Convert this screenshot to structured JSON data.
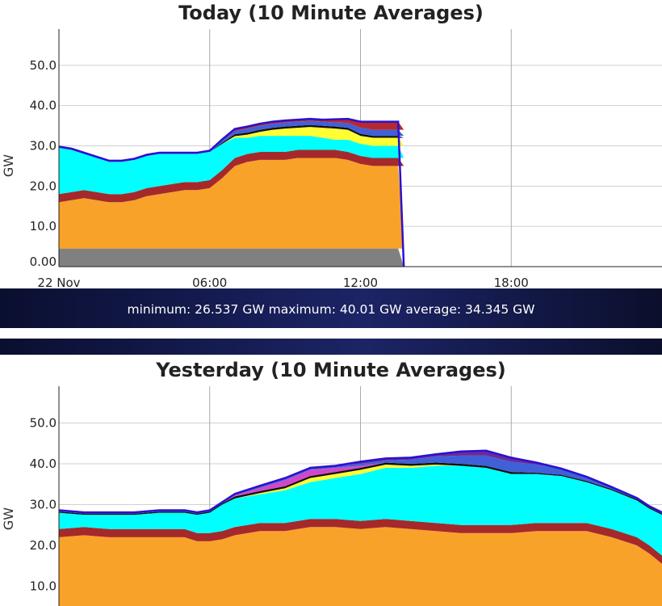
{
  "colors": {
    "grid": "#d0d0d0",
    "vgrid": "#aaaaaa",
    "axis": "#222222",
    "grey": "#808080",
    "orange": "#f8a22a",
    "darkred": "#a5292a",
    "cyan": "#00ffff",
    "yellow": "#ffff33",
    "black": "#111111",
    "magenta": "#d048c8",
    "blue": "#4060d8",
    "darkblue": "#2010b0",
    "red": "#b52a30",
    "purple": "#6a2a9a",
    "outline": "#2a10d0"
  },
  "stats": {
    "text": "minimum: 26.537 GW maximum: 40.01 GW average: 34.345 GW"
  },
  "chart_data": [
    {
      "type": "area",
      "title": "Today (10 Minute Averages)",
      "xlabel": "",
      "ylabel": "GW",
      "xlim": [
        0,
        24
      ],
      "ylim": [
        0,
        59
      ],
      "grid": true,
      "yticks": [
        0,
        10,
        20,
        30,
        40,
        50
      ],
      "ytick_labels": [
        "0.00",
        "10.0",
        "20.0",
        "30.0",
        "40.0",
        "50.0"
      ],
      "xticks": [
        0,
        6,
        12,
        18
      ],
      "xtick_labels": [
        "22 Nov",
        "06:00",
        "12:00",
        "18:00"
      ],
      "x": [
        0.0,
        0.5,
        1.0,
        1.5,
        2.0,
        2.5,
        3.0,
        3.5,
        4.0,
        4.5,
        5.0,
        5.5,
        6.0,
        6.5,
        7.0,
        7.5,
        8.0,
        8.5,
        9.0,
        9.5,
        10.0,
        10.5,
        11.0,
        11.5,
        12.0,
        12.5,
        13.0,
        13.5
      ],
      "stack": [
        {
          "color_key": "grey",
          "values": [
            4.5,
            4.5,
            4.5,
            4.5,
            4.5,
            4.5,
            4.5,
            4.5,
            4.5,
            4.5,
            4.5,
            4.5,
            4.5,
            4.5,
            4.5,
            4.5,
            4.5,
            4.5,
            4.5,
            4.5,
            4.5,
            4.5,
            4.5,
            4.5,
            4.5,
            4.5,
            4.5,
            4.5
          ]
        },
        {
          "color_key": "orange",
          "values": [
            11.5,
            12.0,
            12.5,
            12.0,
            11.5,
            11.5,
            12.0,
            13.0,
            13.5,
            14.0,
            14.5,
            14.5,
            15.0,
            17.5,
            20.5,
            21.5,
            22.0,
            22.0,
            22.0,
            22.5,
            22.5,
            22.5,
            22.5,
            22.0,
            21.0,
            20.5,
            20.5,
            20.5
          ]
        },
        {
          "color_key": "darkred",
          "values": [
            2.0,
            2.0,
            2.0,
            2.0,
            2.0,
            2.0,
            2.0,
            2.0,
            2.0,
            2.0,
            2.0,
            2.0,
            2.0,
            2.0,
            2.0,
            2.0,
            2.0,
            2.0,
            2.0,
            2.0,
            2.0,
            2.0,
            2.0,
            2.0,
            2.0,
            2.0,
            2.0,
            2.0
          ]
        },
        {
          "color_key": "cyan",
          "values": [
            11.5,
            10.5,
            9.0,
            8.5,
            8.0,
            8.0,
            8.0,
            8.0,
            8.0,
            7.5,
            7.0,
            7.0,
            7.0,
            6.5,
            5.0,
            4.0,
            4.0,
            4.0,
            4.0,
            3.5,
            3.5,
            3.0,
            2.5,
            3.0,
            3.0,
            3.0,
            3.0,
            3.0
          ]
        },
        {
          "color_key": "yellow",
          "values": [
            0,
            0,
            0,
            0,
            0,
            0,
            0,
            0,
            0,
            0,
            0,
            0,
            0,
            0,
            0.4,
            0.8,
            1.0,
            1.5,
            1.8,
            2.0,
            2.2,
            2.5,
            2.8,
            2.5,
            2.0,
            2.0,
            2.0,
            2.0
          ]
        },
        {
          "color_key": "black",
          "values": [
            0,
            0,
            0,
            0,
            0,
            0,
            0,
            0,
            0,
            0,
            0,
            0,
            0,
            0.3,
            0.5,
            0.5,
            0.5,
            0.5,
            0.5,
            0.5,
            0.5,
            0.5,
            0.5,
            0.5,
            0.5,
            0.5,
            0.5,
            0.5
          ]
        },
        {
          "color_key": "blue",
          "values": [
            0.3,
            0.3,
            0.3,
            0.3,
            0.3,
            0.3,
            0.3,
            0.3,
            0.3,
            0.3,
            0.3,
            0.3,
            0.3,
            0.5,
            0.8,
            1.0,
            1.0,
            1.0,
            1.0,
            1.0,
            1.0,
            1.0,
            1.0,
            1.2,
            1.5,
            1.5,
            1.5,
            1.5
          ]
        },
        {
          "color_key": "red",
          "values": [
            0,
            0,
            0,
            0,
            0,
            0,
            0,
            0,
            0,
            0,
            0,
            0,
            0,
            0.3,
            0.5,
            0.5,
            0.5,
            0.5,
            0.5,
            0.5,
            0.5,
            0.5,
            0.8,
            1.0,
            1.5,
            2.0,
            2.0,
            2.0
          ]
        }
      ],
      "outline_color_key": "outline"
    },
    {
      "type": "area",
      "title": "Yesterday (10 Minute Averages)",
      "xlabel": "",
      "ylabel": "GW",
      "xlim": [
        0,
        24
      ],
      "ylim": [
        0,
        59
      ],
      "grid": true,
      "yticks": [
        10,
        20,
        30,
        40,
        50
      ],
      "ytick_labels": [
        "10.0",
        "20.0",
        "30.0",
        "40.0",
        "50.0"
      ],
      "xticks": [
        6,
        12,
        18
      ],
      "xtick_labels": [],
      "x": [
        0,
        1,
        2,
        3,
        4,
        5,
        5.5,
        6,
        6.5,
        7,
        8,
        9,
        10,
        11,
        12,
        13,
        14,
        15,
        16,
        17,
        18,
        19,
        20,
        21,
        22,
        23,
        23.5,
        24
      ],
      "stack": [
        {
          "color_key": "orange",
          "values": [
            22.0,
            22.5,
            22.0,
            22.0,
            22.0,
            22.0,
            21.0,
            21.0,
            21.5,
            22.5,
            23.5,
            23.5,
            24.5,
            24.5,
            24.0,
            24.5,
            24.0,
            23.5,
            23.0,
            23.0,
            23.0,
            23.5,
            23.5,
            23.5,
            22.0,
            20.0,
            18.0,
            15.5
          ]
        },
        {
          "color_key": "darkred",
          "values": [
            2.0,
            2.0,
            2.0,
            2.0,
            2.0,
            2.0,
            2.0,
            2.0,
            2.0,
            2.0,
            2.0,
            2.0,
            2.0,
            2.0,
            2.0,
            2.0,
            2.0,
            2.0,
            2.0,
            2.0,
            2.0,
            2.0,
            2.0,
            2.0,
            2.0,
            2.0,
            2.0,
            2.0
          ]
        },
        {
          "color_key": "cyan",
          "values": [
            4.0,
            3.0,
            3.5,
            3.5,
            4.0,
            4.0,
            4.5,
            5.0,
            6.5,
            7.0,
            7.0,
            8.0,
            9.0,
            10.0,
            11.5,
            12.5,
            13.0,
            14.0,
            14.5,
            14.0,
            12.5,
            12.0,
            11.5,
            10.0,
            9.5,
            9.0,
            9.0,
            10.0
          ]
        },
        {
          "color_key": "yellow",
          "values": [
            0,
            0,
            0,
            0,
            0,
            0,
            0,
            0,
            0,
            0,
            0.3,
            0.5,
            1.0,
            1.0,
            1.0,
            0.8,
            0.5,
            0.3,
            0,
            0,
            0,
            0,
            0,
            0,
            0,
            0,
            0,
            0
          ]
        },
        {
          "color_key": "black",
          "values": [
            0.3,
            0.3,
            0.3,
            0.3,
            0.3,
            0.3,
            0.3,
            0.3,
            0.3,
            0.5,
            0.5,
            0.5,
            0.5,
            0.5,
            0.5,
            0.5,
            0.5,
            0.5,
            0.5,
            0.5,
            0.5,
            0.3,
            0.3,
            0.3,
            0.3,
            0.3,
            0.3,
            0.3
          ]
        },
        {
          "color_key": "magenta",
          "values": [
            0,
            0,
            0,
            0,
            0,
            0,
            0,
            0,
            0,
            0.3,
            0.8,
            1.5,
            1.5,
            1.0,
            0.5,
            0,
            0,
            0,
            0,
            0,
            0,
            0,
            0,
            0,
            0,
            0,
            0,
            0
          ]
        },
        {
          "color_key": "blue",
          "values": [
            0.3,
            0.3,
            0.3,
            0.3,
            0.3,
            0.3,
            0.3,
            0.3,
            0.3,
            0.3,
            0.5,
            0.5,
            0.5,
            0.5,
            0.5,
            0.5,
            1.0,
            1.5,
            2.0,
            2.5,
            2.5,
            2.0,
            1.5,
            1.0,
            0.5,
            0.3,
            0.3,
            0.3
          ]
        },
        {
          "color_key": "purple",
          "values": [
            0,
            0,
            0,
            0,
            0,
            0,
            0,
            0,
            0,
            0,
            0,
            0,
            0,
            0,
            0.5,
            0.5,
            0.5,
            0.5,
            1.0,
            1.2,
            1.0,
            0.5,
            0,
            0,
            0,
            0,
            0,
            0
          ]
        }
      ],
      "outline_color_key": "outline"
    }
  ]
}
